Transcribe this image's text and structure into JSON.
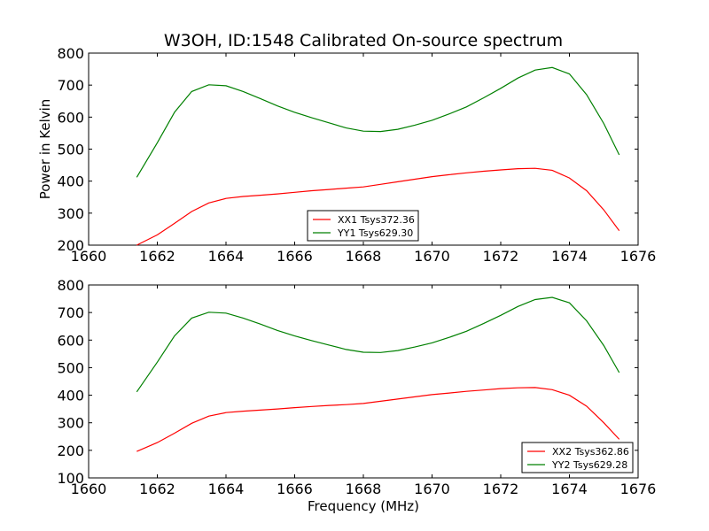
{
  "figure": {
    "title": "W3OH, ID:1548 Calibrated On-source spectrum"
  },
  "chart_data": [
    {
      "type": "line",
      "ylabel": "Power in Kelvin",
      "xlabel": "",
      "xlim": [
        1660,
        1676
      ],
      "ylim": [
        200,
        800
      ],
      "xticks": [
        1660,
        1662,
        1664,
        1666,
        1668,
        1670,
        1672,
        1674,
        1676
      ],
      "yticks": [
        200,
        300,
        400,
        500,
        600,
        700,
        800
      ],
      "legend_position": "lower-center",
      "series": [
        {
          "name": "XX1 Tsys372.36",
          "color": "#ff0000",
          "x": [
            1661.4,
            1662.0,
            1662.5,
            1663.0,
            1663.5,
            1664.0,
            1664.5,
            1665.0,
            1665.5,
            1666.0,
            1666.5,
            1667.0,
            1667.5,
            1668.0,
            1668.5,
            1669.0,
            1669.5,
            1670.0,
            1670.5,
            1671.0,
            1671.5,
            1672.0,
            1672.5,
            1673.0,
            1673.5,
            1674.0,
            1674.5,
            1675.0,
            1675.45
          ],
          "y": [
            200,
            232,
            268,
            305,
            332,
            346,
            352,
            356,
            360,
            365,
            370,
            374,
            378,
            382,
            390,
            398,
            406,
            414,
            420,
            426,
            431,
            435,
            439,
            440,
            434,
            410,
            370,
            310,
            245
          ]
        },
        {
          "name": "YY1 Tsys629.30",
          "color": "#008000",
          "x": [
            1661.4,
            1662.0,
            1662.5,
            1663.0,
            1663.5,
            1664.0,
            1664.5,
            1665.0,
            1665.5,
            1666.0,
            1666.5,
            1667.0,
            1667.5,
            1668.0,
            1668.5,
            1669.0,
            1669.5,
            1670.0,
            1670.5,
            1671.0,
            1671.5,
            1672.0,
            1672.5,
            1673.0,
            1673.5,
            1674.0,
            1674.5,
            1675.0,
            1675.45
          ],
          "y": [
            412,
            520,
            615,
            680,
            701,
            698,
            680,
            658,
            635,
            615,
            598,
            582,
            566,
            556,
            555,
            562,
            575,
            590,
            610,
            632,
            660,
            690,
            722,
            747,
            755,
            735,
            670,
            580,
            482
          ]
        }
      ]
    },
    {
      "type": "line",
      "ylabel": "",
      "xlabel": "Frequency (MHz)",
      "xlim": [
        1660,
        1676
      ],
      "ylim": [
        100,
        800
      ],
      "xticks": [
        1660,
        1662,
        1664,
        1666,
        1668,
        1670,
        1672,
        1674,
        1676
      ],
      "yticks": [
        100,
        200,
        300,
        400,
        500,
        600,
        700,
        800
      ],
      "legend_position": "lower-right",
      "series": [
        {
          "name": "XX2 Tsys362.86",
          "color": "#ff0000",
          "x": [
            1661.4,
            1662.0,
            1662.5,
            1663.0,
            1663.5,
            1664.0,
            1664.5,
            1665.0,
            1665.5,
            1666.0,
            1666.5,
            1667.0,
            1667.5,
            1668.0,
            1668.5,
            1669.0,
            1669.5,
            1670.0,
            1670.5,
            1671.0,
            1671.5,
            1672.0,
            1672.5,
            1673.0,
            1673.5,
            1674.0,
            1674.5,
            1675.0,
            1675.45
          ],
          "y": [
            196,
            228,
            262,
            298,
            324,
            337,
            342,
            346,
            350,
            355,
            359,
            363,
            366,
            370,
            378,
            386,
            394,
            402,
            408,
            414,
            419,
            424,
            427,
            428,
            420,
            400,
            360,
            300,
            240
          ]
        },
        {
          "name": "YY2 Tsys629.28",
          "color": "#008000",
          "x": [
            1661.4,
            1662.0,
            1662.5,
            1663.0,
            1663.5,
            1664.0,
            1664.5,
            1665.0,
            1665.5,
            1666.0,
            1666.5,
            1667.0,
            1667.5,
            1668.0,
            1668.5,
            1669.0,
            1669.5,
            1670.0,
            1670.5,
            1671.0,
            1671.5,
            1672.0,
            1672.5,
            1673.0,
            1673.5,
            1674.0,
            1674.5,
            1675.0,
            1675.45
          ],
          "y": [
            412,
            520,
            615,
            680,
            701,
            698,
            680,
            658,
            635,
            615,
            598,
            582,
            566,
            556,
            555,
            562,
            575,
            590,
            610,
            632,
            660,
            690,
            722,
            747,
            755,
            735,
            670,
            580,
            482
          ]
        }
      ]
    }
  ]
}
